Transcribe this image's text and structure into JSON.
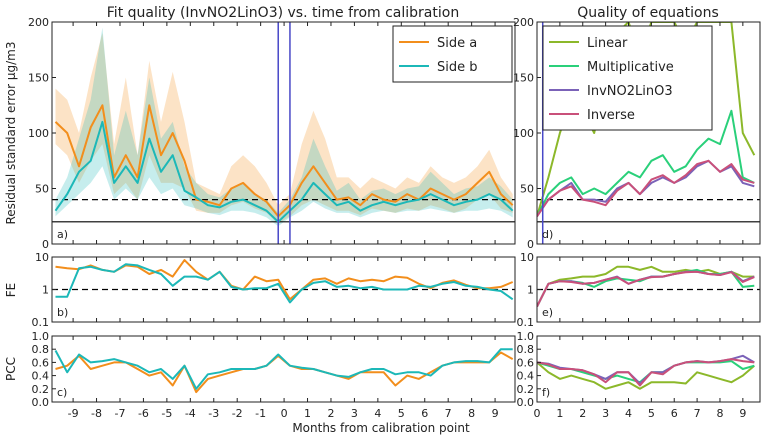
{
  "chart_data": [
    {
      "id": "a",
      "type": "line",
      "title": "Fit quality (InvNO2LinO3) vs. time from calibration",
      "ylabel": "Residual standard error µg/m3",
      "panel_label": "a)",
      "ylim": [
        0,
        200
      ],
      "yticks": [
        "0",
        "50",
        "100",
        "150",
        "200"
      ],
      "ytick_values": [
        0,
        50,
        100,
        150,
        200
      ],
      "xlim": [
        -9.9,
        9.85
      ],
      "x_start": -9.75,
      "x_step": 0.5,
      "hlines": [
        {
          "y": 40,
          "style": "dashed"
        },
        {
          "y": 20,
          "style": "solid"
        }
      ],
      "vlines": [
        -0.25,
        0.25
      ],
      "legend": {
        "placement": "top-right"
      },
      "series": [
        {
          "name": "Side a",
          "color": "#f28e1c",
          "values": [
            110,
            100,
            70,
            105,
            125,
            60,
            80,
            60,
            125,
            80,
            100,
            75,
            40,
            38,
            35,
            50,
            55,
            45,
            38,
            25,
            35,
            55,
            70,
            55,
            40,
            42,
            35,
            45,
            40,
            38,
            45,
            40,
            50,
            45,
            40,
            45,
            55,
            65,
            45,
            35
          ],
          "upper": [
            140,
            130,
            100,
            150,
            190,
            90,
            150,
            80,
            165,
            110,
            155,
            110,
            55,
            50,
            45,
            70,
            80,
            70,
            55,
            35,
            45,
            90,
            120,
            95,
            60,
            60,
            50,
            60,
            55,
            50,
            60,
            55,
            70,
            60,
            55,
            60,
            70,
            85,
            60,
            45
          ],
          "lower": [
            90,
            80,
            55,
            75,
            90,
            45,
            55,
            40,
            80,
            55,
            55,
            50,
            30,
            28,
            28,
            35,
            38,
            32,
            28,
            18,
            25,
            35,
            40,
            35,
            30,
            30,
            26,
            32,
            30,
            28,
            32,
            30,
            35,
            32,
            28,
            32,
            40,
            45,
            32,
            28
          ]
        },
        {
          "name": "Side b",
          "color": "#1cb8b8",
          "values": [
            30,
            45,
            65,
            75,
            110,
            55,
            70,
            55,
            95,
            65,
            80,
            48,
            42,
            35,
            33,
            38,
            40,
            35,
            30,
            20,
            30,
            40,
            55,
            45,
            35,
            38,
            30,
            35,
            38,
            35,
            38,
            40,
            45,
            40,
            35,
            38,
            40,
            45,
            40,
            30
          ],
          "upper": [
            40,
            60,
            95,
            130,
            195,
            80,
            120,
            80,
            150,
            95,
            110,
            70,
            55,
            45,
            42,
            50,
            55,
            45,
            40,
            28,
            40,
            60,
            95,
            70,
            48,
            55,
            40,
            48,
            50,
            45,
            50,
            52,
            65,
            55,
            45,
            50,
            52,
            60,
            52,
            40
          ],
          "lower": [
            25,
            35,
            45,
            55,
            70,
            40,
            50,
            40,
            60,
            45,
            50,
            35,
            32,
            28,
            26,
            30,
            30,
            28,
            24,
            16,
            24,
            30,
            38,
            32,
            28,
            28,
            24,
            28,
            30,
            28,
            30,
            30,
            32,
            30,
            28,
            30,
            30,
            32,
            30,
            24
          ]
        }
      ]
    },
    {
      "id": "b",
      "type": "line",
      "ylabel": "FE",
      "panel_label": "b)",
      "yscale": "log",
      "ylim": [
        0.1,
        10
      ],
      "yticks": [
        "0.1",
        "1",
        "10"
      ],
      "ytick_values": [
        0.1,
        1,
        10
      ],
      "xlim": [
        -9.9,
        9.85
      ],
      "x_start": -9.75,
      "x_step": 0.5,
      "hlines": [
        {
          "y": 1,
          "style": "dashed"
        }
      ],
      "series": [
        {
          "name": "Side a",
          "color": "#f28e1c",
          "values": [
            5,
            4.5,
            4.2,
            5.5,
            4,
            3.5,
            5.5,
            5,
            3,
            4,
            2.5,
            8,
            3.5,
            2,
            3.5,
            1.3,
            1,
            2.5,
            1.8,
            2,
            0.5,
            1,
            2,
            2.2,
            1.5,
            2.2,
            1.8,
            2,
            1.8,
            2.5,
            2.3,
            1.5,
            1.1,
            1.6,
            1.9,
            1.4,
            1.1,
            1.1,
            1.2,
            1.7
          ]
        },
        {
          "name": "Side b",
          "color": "#1cb8b8",
          "values": [
            0.6,
            0.6,
            4.5,
            5,
            4,
            3.5,
            6,
            5.5,
            4,
            3,
            1.3,
            2.5,
            2.5,
            2,
            3.5,
            1.2,
            1,
            1.1,
            1.1,
            1.5,
            0.4,
            1,
            1.6,
            1.8,
            1.2,
            1.3,
            1.1,
            1.2,
            1,
            1,
            1,
            1.3,
            1.2,
            1.5,
            1.7,
            1.3,
            1.2,
            1,
            0.9,
            0.5
          ]
        }
      ]
    },
    {
      "id": "c",
      "type": "line",
      "ylabel": "PCC",
      "panel_label": "c)",
      "ylim": [
        0,
        1
      ],
      "yticks": [
        "0.0",
        "0.2",
        "0.4",
        "0.6",
        "0.8",
        "1.0"
      ],
      "ytick_values": [
        0,
        0.2,
        0.4,
        0.6,
        0.8,
        1
      ],
      "xlim": [
        -9.9,
        9.85
      ],
      "x_start": -9.75,
      "x_step": 0.5,
      "xticks": [
        "-9",
        "-8",
        "-7",
        "-6",
        "-5",
        "-4",
        "-3",
        "-2",
        "-1",
        "0",
        "1",
        "2",
        "3",
        "4",
        "5",
        "6",
        "7",
        "8",
        "9"
      ],
      "xtick_values": [
        -9,
        -8,
        -7,
        -6,
        -5,
        -4,
        -3,
        -2,
        -1,
        0,
        1,
        2,
        3,
        4,
        5,
        6,
        7,
        8,
        9
      ],
      "series": [
        {
          "name": "Side a",
          "color": "#f28e1c",
          "values": [
            0.5,
            0.55,
            0.7,
            0.5,
            0.55,
            0.6,
            0.6,
            0.5,
            0.4,
            0.45,
            0.25,
            0.55,
            0.15,
            0.35,
            0.4,
            0.45,
            0.5,
            0.5,
            0.55,
            0.7,
            0.55,
            0.5,
            0.5,
            0.45,
            0.4,
            0.35,
            0.45,
            0.45,
            0.45,
            0.25,
            0.4,
            0.35,
            0.45,
            0.55,
            0.6,
            0.6,
            0.6,
            0.6,
            0.75,
            0.65
          ]
        },
        {
          "name": "Side b",
          "color": "#1cb8b8",
          "values": [
            0.78,
            0.45,
            0.72,
            0.6,
            0.62,
            0.65,
            0.6,
            0.55,
            0.45,
            0.5,
            0.35,
            0.55,
            0.2,
            0.42,
            0.45,
            0.5,
            0.5,
            0.5,
            0.55,
            0.72,
            0.55,
            0.52,
            0.5,
            0.45,
            0.4,
            0.38,
            0.45,
            0.5,
            0.5,
            0.42,
            0.45,
            0.45,
            0.4,
            0.55,
            0.6,
            0.62,
            0.62,
            0.6,
            0.8,
            0.8
          ]
        }
      ]
    },
    {
      "id": "d",
      "type": "line",
      "title": "Quality of equations",
      "panel_label": "d)",
      "ylim": [
        0,
        200
      ],
      "yticks": [
        "0",
        "50",
        "100",
        "150",
        "200"
      ],
      "ytick_values": [
        0,
        50,
        100,
        150,
        200
      ],
      "xlim": [
        0,
        9.75
      ],
      "x_start": 0,
      "x_step": 0.5,
      "hlines": [
        {
          "y": 40,
          "style": "dashed"
        },
        {
          "y": 20,
          "style": "solid"
        }
      ],
      "vlines": [
        0.25
      ],
      "legend": {
        "placement": "top-left"
      },
      "series": [
        {
          "name": "Linear",
          "color": "#8cb82a",
          "values": [
            25,
            60,
            100,
            130,
            120,
            100,
            150,
            190,
            200,
            170,
            200,
            200,
            200,
            180,
            200,
            200,
            200,
            200,
            100,
            80
          ]
        },
        {
          "name": "Multiplicative",
          "color": "#2ad07a",
          "values": [
            25,
            45,
            55,
            60,
            45,
            50,
            45,
            55,
            65,
            60,
            75,
            80,
            65,
            70,
            85,
            95,
            90,
            120,
            60,
            55
          ]
        },
        {
          "name": "InvNO2LinO3",
          "color": "#7b62b8",
          "values": [
            25,
            40,
            48,
            55,
            40,
            40,
            38,
            50,
            55,
            45,
            55,
            60,
            55,
            60,
            70,
            75,
            65,
            70,
            55,
            52
          ]
        },
        {
          "name": "Inverse",
          "color": "#c9507a",
          "values": [
            25,
            40,
            48,
            52,
            40,
            38,
            35,
            48,
            55,
            45,
            58,
            62,
            55,
            62,
            72,
            75,
            65,
            72,
            58,
            55
          ]
        }
      ]
    },
    {
      "id": "e",
      "type": "line",
      "panel_label": "e)",
      "yscale": "log",
      "ylim": [
        0.1,
        10
      ],
      "yticks": [
        "0.1",
        "1",
        "10"
      ],
      "ytick_values": [
        0.1,
        1,
        10
      ],
      "xlim": [
        0,
        9.75
      ],
      "x_start": 0,
      "x_step": 0.5,
      "hlines": [
        {
          "y": 1,
          "style": "dashed"
        }
      ],
      "series": [
        {
          "name": "Linear",
          "color": "#8cb82a",
          "values": [
            0.3,
            1.5,
            2,
            2.2,
            2.5,
            2.5,
            3,
            5,
            5,
            4,
            5,
            3.5,
            3.5,
            4,
            3.5,
            4,
            3,
            3.5,
            2.5,
            2.5
          ]
        },
        {
          "name": "Multiplicative",
          "color": "#2ad07a",
          "values": [
            0.3,
            1.5,
            1.8,
            1.8,
            1.6,
            1.2,
            1.8,
            2.2,
            2,
            1.8,
            2.5,
            2.5,
            3,
            3.5,
            4,
            3,
            3,
            3.5,
            1.2,
            1.3
          ]
        },
        {
          "name": "InvNO2LinO3",
          "color": "#7b62b8",
          "values": [
            0.3,
            1.5,
            1.8,
            1.8,
            1.5,
            1.6,
            2,
            2.5,
            1.5,
            2,
            2.5,
            2.5,
            3,
            3.5,
            3.5,
            3,
            2.8,
            3.5,
            1.8,
            2.5
          ]
        },
        {
          "name": "Inverse",
          "color": "#c9507a",
          "values": [
            0.3,
            1.5,
            1.8,
            1.7,
            1.5,
            1.6,
            2,
            2.4,
            1.5,
            2,
            2.4,
            2.5,
            3,
            3.4,
            3.5,
            3,
            2.8,
            3.4,
            1.7,
            2.4
          ]
        }
      ]
    },
    {
      "id": "f",
      "type": "line",
      "panel_label": "f)",
      "ylim": [
        0,
        1
      ],
      "yticks": [
        "0.0",
        "0.2",
        "0.4",
        "0.6",
        "0.8",
        "1.0"
      ],
      "ytick_values": [
        0,
        0.2,
        0.4,
        0.6,
        0.8,
        1
      ],
      "xlim": [
        0,
        9.75
      ],
      "x_start": 0,
      "x_step": 0.5,
      "xticks": [
        "0",
        "1",
        "2",
        "3",
        "4",
        "5",
        "6",
        "7",
        "8",
        "9"
      ],
      "xtick_values": [
        0,
        1,
        2,
        3,
        4,
        5,
        6,
        7,
        8,
        9
      ],
      "series": [
        {
          "name": "Linear",
          "color": "#8cb82a",
          "values": [
            0.6,
            0.45,
            0.35,
            0.4,
            0.35,
            0.3,
            0.2,
            0.25,
            0.3,
            0.2,
            0.3,
            0.3,
            0.3,
            0.28,
            0.45,
            0.4,
            0.35,
            0.3,
            0.4,
            0.55
          ]
        },
        {
          "name": "Multiplicative",
          "color": "#2ad07a",
          "values": [
            0.6,
            0.55,
            0.5,
            0.5,
            0.45,
            0.4,
            0.35,
            0.4,
            0.35,
            0.3,
            0.45,
            0.45,
            0.55,
            0.6,
            0.6,
            0.6,
            0.6,
            0.62,
            0.5,
            0.55
          ]
        },
        {
          "name": "InvNO2LinO3",
          "color": "#7b62b8",
          "values": [
            0.6,
            0.58,
            0.52,
            0.5,
            0.48,
            0.42,
            0.35,
            0.45,
            0.45,
            0.28,
            0.45,
            0.45,
            0.55,
            0.6,
            0.62,
            0.6,
            0.62,
            0.65,
            0.7,
            0.6
          ]
        },
        {
          "name": "Inverse",
          "color": "#c9507a",
          "values": [
            0.6,
            0.57,
            0.5,
            0.5,
            0.48,
            0.42,
            0.3,
            0.45,
            0.45,
            0.25,
            0.45,
            0.42,
            0.55,
            0.6,
            0.62,
            0.6,
            0.62,
            0.65,
            0.62,
            0.6
          ]
        }
      ]
    }
  ],
  "xlabel": "Months from calibration point",
  "reference_line_color": "#4848c8"
}
